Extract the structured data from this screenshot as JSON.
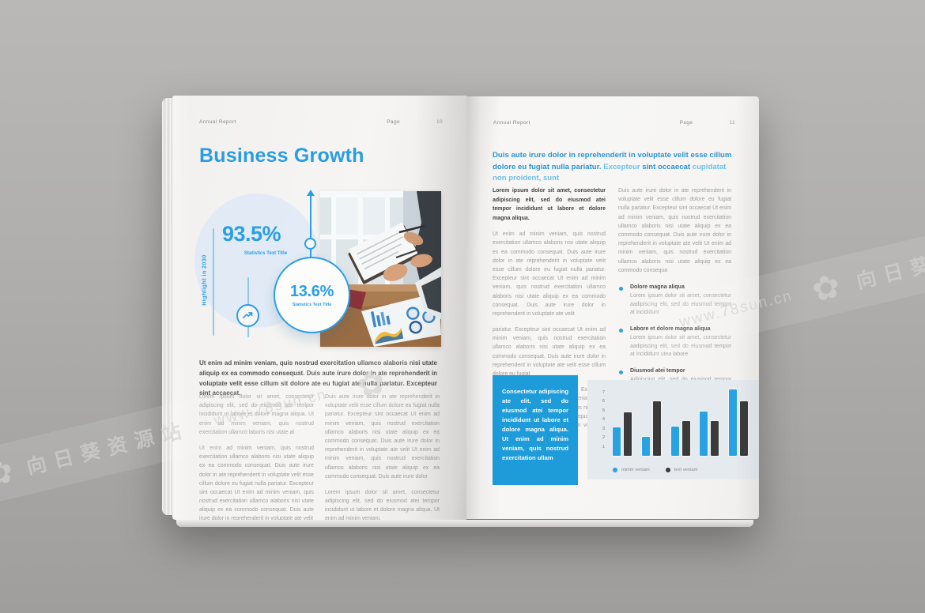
{
  "watermark": {
    "site": "www.78sun.cn",
    "name": "向日葵资源站",
    "logo_glyph": "✿"
  },
  "left_page": {
    "header": {
      "brand": "Annual Report",
      "page_label": "Page",
      "page_number": "10"
    },
    "title": "Business Growth",
    "highlight_label": "Highlight in 2030",
    "stats": [
      {
        "value": "93.5%",
        "label": "Statistics Text Title"
      },
      {
        "value": "13.6%",
        "label": "Statistics Text Title"
      }
    ],
    "intro": "Ut enim ad minim veniam, quis nostrud exercitation ullamco alaboris nisi utate aliquip ex ea commodo consequat. Duis aute irure dolor in ate reprehenderit in voluptate velit esse cillum sit dolore ate eu fugiat ate nulla pariatur. Excepteur sint accaecat.",
    "columns": {
      "col1": [
        "Lorem ipsum dolor sit amet, consectetur adipiscing elit, sed do eiusmod atei tempor incididunt ut labore et dolore magna aliqua. Ut enim ad minim veniam, quis nostrud exercitation ullamco laboris nisi utate al",
        "Ut enim ad minim veniam, quis nostrud exercitation ullamco alaboris nisi utate aliquip ex ea commodo consequat. Duis aute irure dolor in ate reprehenderit in voluptate velit esse cillum dolore eu fugiat nulla pariatur. Excepteur sint occaecat Ut enim ad minim veniam, quis nostrud exercitation ullamco alaboris nisi utate aliquip ex ea commodo consequat. Duis aute irure dolor in reprehenderit in voluptate ate velit"
      ],
      "col2": [
        "Duis aute irure dolor in ate reprehenderit in voluptate velit esse cillum dolore eu fugiat nulla pariatur. Excepteur sint occaecat Ut enim ad minim veniam, quis nostrud exercitation ullamco alaboris nisi utate aliquip ex ea commodo consequat. Duis aute irure dolor in reprehenderit in voluptate ate velit Ut enim ad minim veniam, quis nostrud exercitation ullamco alaboris nisi utate aliquip ex ea commodo consequat. Duis aute irure dolor",
        "Lorem ipsum dolor sit amet, consectetur adipiscing elit, sed do eiusmod atei tempor incididunt ut labore et dolore magna aliqua. Ut enim ad minim veniam."
      ]
    }
  },
  "right_page": {
    "header": {
      "brand": "Annual Report",
      "page_label": "Page",
      "page_number": "11"
    },
    "heading_parts": [
      {
        "text": "Duis aute irure dolor in reprehenderit in voluptate velit esse cillum dolore eu fugiat nulla pariatur. ",
        "tone": "dark"
      },
      {
        "text": "Excepteur ",
        "tone": "light"
      },
      {
        "text": "sint occaecat ",
        "tone": "dark"
      },
      {
        "text": "cupidatat non proident, sunt",
        "tone": "light"
      }
    ],
    "col1": {
      "lead": "Lorem ipsum dolor sit amet, consectetur adipiscing elit, sed do eiusmod atei tempor incididunt ut labore et dolore magna aliqua.",
      "paras": [
        "Ut enim ad minim veniam, quis nostrud exercitation ullamco alaboris nisi utate aliquip ex ea commodo consequat. Duis aute irure dolor in ate reprehenderit in voluptate velit esse cillum dolore eu fugiat nulla pariatur. Excepteur sint occaecat Ut enim ad minim veniam, quis nostrud exercitation ullamco alaboris nisi utate aliquip ex ea commodo consequat. Duis aute irure dolor in reprehenderit in voluptate ate velit",
        "pariatur. Excepteur sint occaecat Ut enim ad minim veniam, quis nostrud exercitation ullamco alaboris nisi utate aliquip ex ea commodo consequat. Duis aute irure dolor in reprehenderit in voluptate ate velit esse cillum dolore eu fugiat",
        "Nulla pariatur. Excepteur pariatur. Excepteur sint occaecat Ut enim ad minim veniam, quis nostrud exercitation ullamco alaboris nisi utate aliquip ex ea commodo at consequat. Duis aute irure dolor in reprehenderit in voluptate ate velit"
      ]
    },
    "col2": {
      "para": "Duis aute irure dolor in ate reprehenderit in voluptate velit esse cillum dolore eu fugiat nulla pariatur. Excepteur sint occaecat Ut enim ad minim veniam, quis nostrud exercitation ullamco alaboris nisi utate aliquip ex ea commodo consequat. Duis aute irure dolor in reprehenderit in voluptate ate velit Ut enim ad minim veniam, quis nostrud exercitation ullamco alaboris nisi utate aliquip ex ea commodo consequa",
      "bullets": [
        {
          "title": "Dolore magna aliqua",
          "text": "Lorem ipsum dolor sit amet, consectetur aadipiscing elit, sed do eiusmod tempor at incididunt"
        },
        {
          "title": "Labore et dolore magna aliqua",
          "text": "Lorem ipsum dolor sit amet, consectetur aadipiscing elit, sed do eiusmod tempor at incididunt utea labore"
        },
        {
          "title": "Diusmod atei tempor",
          "text": "Adipiscing elit, sed do eiusmod tempor incididunt utea labore et dolore magna aliqua. Ut enim ad minim veniam, quis nostrud exercitati"
        }
      ]
    },
    "quote_box": "Consectetur adipiscing ate elit, sed do eiusmod atei tempor incididunt ut labore et dolore magna aliqua. Ut enim ad minim veniam, quis nostrud exercitation ullam"
  },
  "chart_data": {
    "type": "bar",
    "series": [
      {
        "name": "minim veniam",
        "color": "#29a2e2",
        "values": [
          3.1,
          2.1,
          3.2,
          4.9,
          7.3
        ]
      },
      {
        "name": "text veniam",
        "color": "#3b3b3b",
        "values": [
          4.8,
          6.0,
          3.8,
          3.8,
          6.0
        ]
      }
    ],
    "title": "",
    "xlabel": "",
    "ylabel": "",
    "ylim": [
      0,
      7.5
    ],
    "yticks": [
      1,
      2,
      3,
      4,
      5,
      6,
      7
    ],
    "grid": false,
    "legend_position": "bottom"
  },
  "colors": {
    "accent_blue": "#2a9fe3",
    "heading_dark": "#2a93d4",
    "heading_light": "#6fc0ea",
    "quote_box_blue": "#1e9bd9",
    "bar_blue": "#29a2e2",
    "bar_dark": "#3b3b3b",
    "backdrop_gray": "#aaa8a7",
    "paper": "#f5f4f2"
  }
}
